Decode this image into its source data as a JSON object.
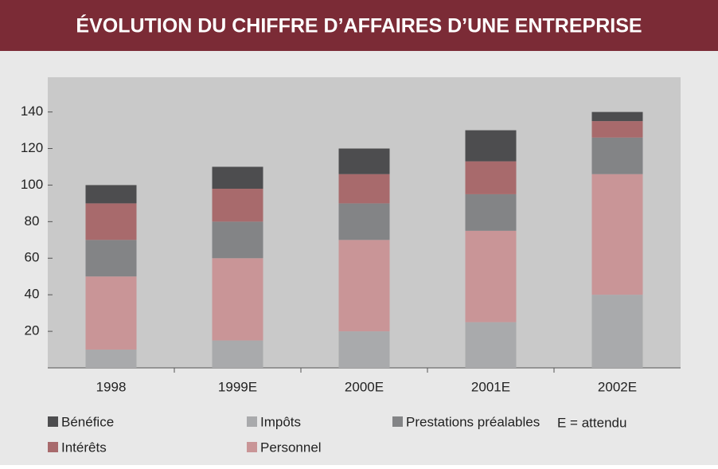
{
  "chart_data": {
    "type": "stacked_bar",
    "title": "ÉVOLUTION DU CHIFFRE D’AFFAIRES D’UNE ENTREPRISE",
    "categories": [
      "1998",
      "1999E",
      "2000E",
      "2001E",
      "2002E"
    ],
    "series": [
      {
        "name": "Impôts",
        "color": "#a9aaac",
        "values": [
          10,
          15,
          20,
          25,
          40
        ]
      },
      {
        "name": "Personnel",
        "color": "#c99597",
        "values": [
          40,
          45,
          50,
          50,
          66
        ]
      },
      {
        "name": "Prestations préalables",
        "color": "#838486",
        "values": [
          20,
          20,
          20,
          20,
          20
        ]
      },
      {
        "name": "Intérêts",
        "color": "#a86a6c",
        "values": [
          20,
          18,
          16,
          18,
          9
        ]
      },
      {
        "name": "Bénéfice",
        "color": "#4d4d4f",
        "values": [
          10,
          12,
          14,
          17,
          5
        ]
      }
    ],
    "annotation": "E = attendu",
    "ylim": [
      0,
      159
    ],
    "yticks": [
      20,
      40,
      60,
      80,
      100,
      120,
      140
    ]
  }
}
